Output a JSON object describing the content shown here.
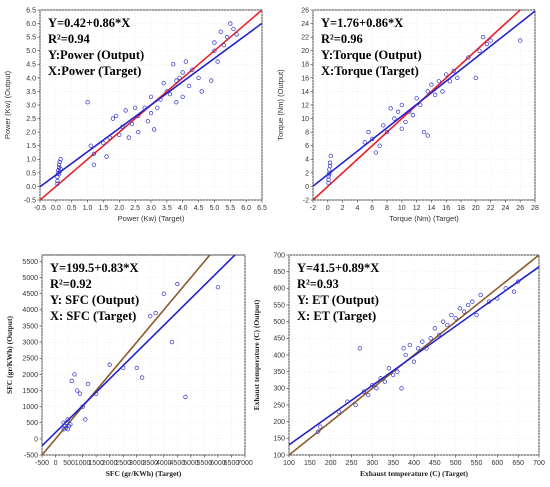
{
  "chart_data": [
    {
      "type": "scatter",
      "id": "power",
      "xlabel": "Power (Kw) (Target)",
      "ylabel": "Power (Kw) (Output)",
      "xlim": [
        -0.5,
        6.5
      ],
      "ylim": [
        -0.5,
        6.5
      ],
      "xticks": [
        "-0.5",
        "0.0",
        "0.5",
        "1.0",
        "1.5",
        "2.0",
        "2.5",
        "3.0",
        "3.5",
        "4.0",
        "4.5",
        "5.0",
        "5.5",
        "6.0",
        "6.5"
      ],
      "yticks": [
        "-0.5",
        "0.0",
        "0.5",
        "1.0",
        "1.5",
        "2.0",
        "2.5",
        "3.0",
        "3.5",
        "4.0",
        "4.5",
        "5.0",
        "5.5",
        "6.0",
        "6.5"
      ],
      "annotation": [
        "Y=0.42+0.86*X",
        "R²=0.94",
        "Y:Power (Output)",
        "X:Power (Target)"
      ],
      "fit": {
        "intercept": 0.42,
        "slope": 0.86
      },
      "points": [
        [
          0.05,
          0.2
        ],
        [
          0.05,
          0.35
        ],
        [
          0.07,
          0.5
        ],
        [
          0.08,
          0.6
        ],
        [
          0.1,
          0.7
        ],
        [
          0.1,
          0.8
        ],
        [
          0.12,
          0.9
        ],
        [
          0.15,
          1.0
        ],
        [
          0.05,
          0.1
        ],
        [
          0.1,
          0.45
        ],
        [
          0.12,
          0.55
        ],
        [
          0.15,
          0.65
        ],
        [
          1.0,
          3.1
        ],
        [
          1.1,
          1.5
        ],
        [
          1.2,
          1.2
        ],
        [
          1.2,
          0.8
        ],
        [
          1.5,
          1.6
        ],
        [
          1.6,
          1.1
        ],
        [
          1.7,
          1.8
        ],
        [
          1.8,
          2.5
        ],
        [
          1.9,
          2.6
        ],
        [
          2.0,
          1.9
        ],
        [
          2.1,
          2.2
        ],
        [
          2.2,
          2.8
        ],
        [
          2.3,
          1.8
        ],
        [
          2.4,
          2.3
        ],
        [
          2.5,
          2.9
        ],
        [
          2.6,
          2.6
        ],
        [
          2.6,
          2.0
        ],
        [
          2.8,
          2.9
        ],
        [
          2.9,
          2.4
        ],
        [
          3.0,
          2.7
        ],
        [
          3.0,
          3.3
        ],
        [
          3.1,
          2.1
        ],
        [
          3.2,
          2.9
        ],
        [
          3.3,
          3.2
        ],
        [
          3.4,
          3.8
        ],
        [
          3.5,
          3.5
        ],
        [
          3.6,
          3.4
        ],
        [
          3.7,
          4.5
        ],
        [
          3.8,
          3.9
        ],
        [
          3.8,
          3.1
        ],
        [
          3.9,
          4.0
        ],
        [
          4.0,
          4.2
        ],
        [
          4.0,
          3.3
        ],
        [
          4.1,
          4.6
        ],
        [
          4.2,
          3.7
        ],
        [
          4.3,
          4.3
        ],
        [
          4.5,
          4.0
        ],
        [
          4.6,
          3.5
        ],
        [
          4.9,
          3.9
        ],
        [
          5.0,
          5.3
        ],
        [
          5.0,
          5.0
        ],
        [
          5.1,
          4.6
        ],
        [
          5.2,
          5.7
        ],
        [
          5.3,
          5.2
        ],
        [
          5.4,
          5.5
        ],
        [
          5.5,
          6.0
        ],
        [
          5.6,
          5.8
        ],
        [
          5.7,
          5.6
        ]
      ]
    },
    {
      "type": "scatter",
      "id": "torque",
      "xlabel": "Torque (Nm) (Target)",
      "ylabel": "Torque (Nm) (Output)",
      "xlim": [
        -2,
        28
      ],
      "ylim": [
        -2,
        26
      ],
      "xticks": [
        "-2",
        "0",
        "2",
        "4",
        "6",
        "8",
        "10",
        "12",
        "14",
        "16",
        "18",
        "20",
        "22",
        "24",
        "26",
        "28"
      ],
      "yticks": [
        "-2",
        "0",
        "2",
        "4",
        "6",
        "8",
        "10",
        "12",
        "14",
        "16",
        "18",
        "20",
        "22",
        "24",
        "26"
      ],
      "annotation": [
        "Y=1.76+0.86*X",
        "R²=0.96",
        "Y:Torque (Output)",
        "X:Torque (Target)"
      ],
      "fit": {
        "intercept": 1.76,
        "slope": 0.86
      },
      "points": [
        [
          0.1,
          0.5
        ],
        [
          0.1,
          1.0
        ],
        [
          0.1,
          1.5
        ],
        [
          0.2,
          2.0
        ],
        [
          0.2,
          2.5
        ],
        [
          0.3,
          3.0
        ],
        [
          0.3,
          3.5
        ],
        [
          0.4,
          4.5
        ],
        [
          0.2,
          1.8
        ],
        [
          5.0,
          6.5
        ],
        [
          5.5,
          8.0
        ],
        [
          6.0,
          7.0
        ],
        [
          6.5,
          5.0
        ],
        [
          7.0,
          6.0
        ],
        [
          7.5,
          9.0
        ],
        [
          8.0,
          8.0
        ],
        [
          8.5,
          11.5
        ],
        [
          9.0,
          10.0
        ],
        [
          9.5,
          11.0
        ],
        [
          10.0,
          8.5
        ],
        [
          10.0,
          12.0
        ],
        [
          10.5,
          9.5
        ],
        [
          11.0,
          11.0
        ],
        [
          11.5,
          10.5
        ],
        [
          12.0,
          13.0
        ],
        [
          12.5,
          12.0
        ],
        [
          13.0,
          8.0
        ],
        [
          13.5,
          7.5
        ],
        [
          13.5,
          14.0
        ],
        [
          14.0,
          15.0
        ],
        [
          14.5,
          13.5
        ],
        [
          15.0,
          15.5
        ],
        [
          15.5,
          14.0
        ],
        [
          16.0,
          16.5
        ],
        [
          16.5,
          15.5
        ],
        [
          17.0,
          17.0
        ],
        [
          17.5,
          16.0
        ],
        [
          19.0,
          19.0
        ],
        [
          20.0,
          16.0
        ],
        [
          20.5,
          20.0
        ],
        [
          21.0,
          22.0
        ],
        [
          21.5,
          21.0
        ],
        [
          22.0,
          21.5
        ],
        [
          26.0,
          21.5
        ]
      ]
    },
    {
      "type": "scatter",
      "id": "sfc",
      "xlabel": "SFC (gr/KWh) (Target)",
      "ylabel": "SFC (gr/KWh) (Output)",
      "xlim": [
        -500,
        7000
      ],
      "ylim": [
        -500,
        5700
      ],
      "xticks": [
        "-500",
        "0",
        "500",
        "1000",
        "1500",
        "2000",
        "2500",
        "3000",
        "3500",
        "4000",
        "4500",
        "5000",
        "5500",
        "6000",
        "6500",
        "7000"
      ],
      "yticks": [
        "-500",
        "0",
        "500",
        "1000",
        "1500",
        "2000",
        "2500",
        "3000",
        "3500",
        "4000",
        "4500",
        "5000",
        "5500"
      ],
      "annotation": [
        "Y=199.5+0.83*X",
        "R²=0.92",
        "Y: SFC (Output)",
        "X: SFC (Target)"
      ],
      "fit": {
        "intercept": 199.5,
        "slope": 0.83
      },
      "points": [
        [
          300,
          300
        ],
        [
          350,
          400
        ],
        [
          400,
          350
        ],
        [
          400,
          500
        ],
        [
          450,
          300
        ],
        [
          500,
          400
        ],
        [
          550,
          450
        ],
        [
          300,
          500
        ],
        [
          450,
          600
        ],
        [
          600,
          1800
        ],
        [
          700,
          2000
        ],
        [
          800,
          1500
        ],
        [
          900,
          1400
        ],
        [
          1000,
          1000
        ],
        [
          1100,
          600
        ],
        [
          1200,
          1700
        ],
        [
          1500,
          1400
        ],
        [
          2000,
          2300
        ],
        [
          2500,
          2200
        ],
        [
          3000,
          2200
        ],
        [
          3200,
          1900
        ],
        [
          3500,
          3800
        ],
        [
          3700,
          3900
        ],
        [
          4000,
          4500
        ],
        [
          4300,
          3000
        ],
        [
          4500,
          4800
        ],
        [
          4800,
          1300
        ],
        [
          6000,
          4700
        ]
      ]
    },
    {
      "type": "scatter",
      "id": "et",
      "xlabel": "Exhaust temperature (C) (Target)",
      "ylabel": "Exhaust temperature (C) (Output)",
      "xlim": [
        100,
        700
      ],
      "ylim": [
        100,
        700
      ],
      "xticks": [
        "100",
        "150",
        "200",
        "250",
        "300",
        "350",
        "400",
        "450",
        "500",
        "550",
        "600",
        "650",
        "700"
      ],
      "yticks": [
        "100",
        "150",
        "200",
        "250",
        "300",
        "350",
        "400",
        "450",
        "500",
        "550",
        "600",
        "650",
        "700"
      ],
      "annotation": [
        "Y=41.5+0.89*X",
        "R²=0.93",
        "Y: ET (Output)",
        "X: ET (Target)"
      ],
      "fit": {
        "intercept": 41.5,
        "slope": 0.89
      },
      "points": [
        [
          170,
          170
        ],
        [
          175,
          185
        ],
        [
          220,
          230
        ],
        [
          240,
          260
        ],
        [
          260,
          250
        ],
        [
          270,
          420
        ],
        [
          280,
          290
        ],
        [
          290,
          280
        ],
        [
          300,
          310
        ],
        [
          310,
          300
        ],
        [
          320,
          330
        ],
        [
          330,
          320
        ],
        [
          340,
          360
        ],
        [
          350,
          340
        ],
        [
          360,
          350
        ],
        [
          370,
          300
        ],
        [
          375,
          420
        ],
        [
          380,
          400
        ],
        [
          390,
          430
        ],
        [
          400,
          380
        ],
        [
          410,
          420
        ],
        [
          420,
          440
        ],
        [
          430,
          420
        ],
        [
          440,
          450
        ],
        [
          450,
          480
        ],
        [
          460,
          460
        ],
        [
          470,
          500
        ],
        [
          480,
          490
        ],
        [
          490,
          520
        ],
        [
          500,
          510
        ],
        [
          510,
          540
        ],
        [
          520,
          530
        ],
        [
          530,
          550
        ],
        [
          540,
          560
        ],
        [
          550,
          520
        ],
        [
          560,
          580
        ],
        [
          580,
          560
        ],
        [
          600,
          570
        ],
        [
          620,
          600
        ],
        [
          640,
          590
        ],
        [
          650,
          620
        ]
      ]
    }
  ]
}
